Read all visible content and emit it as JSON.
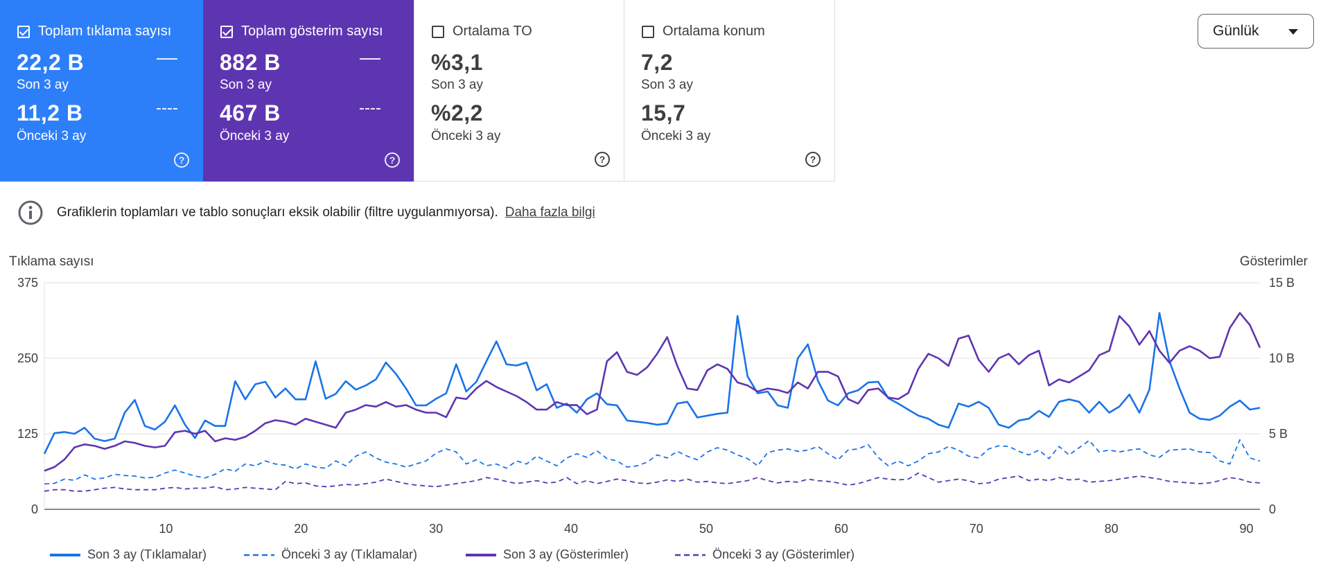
{
  "cards": [
    {
      "label": "Toplam tıklama sayısı",
      "checked": true,
      "value1": "22,2 B",
      "sub1": "Son 3 ay",
      "value2": "11,2 B",
      "sub2": "Önceki 3 ay"
    },
    {
      "label": "Toplam gösterim sayısı",
      "checked": true,
      "value1": "882 B",
      "sub1": "Son 3 ay",
      "value2": "467 B",
      "sub2": "Önceki 3 ay"
    },
    {
      "label": "Ortalama TO",
      "checked": false,
      "value1": "%3,1",
      "sub1": "Son 3 ay",
      "value2": "%2,2",
      "sub2": "Önceki 3 ay"
    },
    {
      "label": "Ortalama konum",
      "checked": false,
      "value1": "7,2",
      "sub1": "Son 3 ay",
      "value2": "15,7",
      "sub2": "Önceki 3 ay"
    }
  ],
  "granularity": {
    "selected": "Günlük"
  },
  "notice": {
    "text": "Grafiklerin toplamları ve tablo sonuçları eksik olabilir (filtre uygulanmıyorsa).",
    "link": "Daha fazla bilgi"
  },
  "colors": {
    "blue": "#1a73e8",
    "purple": "#5e35b1",
    "card_blue": "#2d7ff9",
    "card_purple": "#5e35b1"
  },
  "icons": {
    "info": "info-circle-icon",
    "help": "help-circle-icon",
    "dropdown": "caret-down-icon"
  },
  "chart_data": {
    "type": "line",
    "ylabel_left": "Tıklama sayısı",
    "ylabel_right": "Gösterimler",
    "ylim_left": [
      0,
      375
    ],
    "ylim_right": [
      0,
      15000
    ],
    "yticks_left": [
      "0",
      "125",
      "250",
      "375"
    ],
    "yticks_right": [
      "0",
      "5 B",
      "10 B",
      "15 B"
    ],
    "xticks": [
      10,
      20,
      30,
      40,
      50,
      60,
      70,
      80,
      90
    ],
    "grid": true,
    "legend_position": "bottom",
    "series": [
      {
        "name": "Son 3 ay (Tıklamalar)",
        "axis": "left",
        "style": "solid",
        "color": "#1a73e8",
        "values": [
          92,
          126,
          128,
          125,
          135,
          117,
          113,
          117,
          160,
          181,
          138,
          132,
          145,
          172,
          140,
          118,
          147,
          138,
          138,
          212,
          182,
          207,
          211,
          185,
          200,
          182,
          182,
          245,
          183,
          191,
          212,
          198,
          205,
          215,
          243,
          224,
          200,
          172,
          172,
          183,
          192,
          240,
          195,
          211,
          245,
          278,
          240,
          238,
          243,
          197,
          207,
          168,
          175,
          160,
          182,
          192,
          174,
          172,
          147,
          145,
          143,
          140,
          142,
          175,
          178,
          152,
          155,
          158,
          160,
          320,
          220,
          192,
          195,
          172,
          168,
          250,
          273,
          213,
          180,
          172,
          192,
          197,
          210,
          211,
          184,
          175,
          165,
          155,
          150,
          140,
          135,
          175,
          170,
          178,
          168,
          140,
          135,
          147,
          150,
          163,
          153,
          178,
          182,
          178,
          160,
          178,
          160,
          170,
          190,
          160,
          198,
          325,
          245,
          200,
          160,
          150,
          148,
          155,
          170,
          180,
          165,
          168
        ]
      },
      {
        "name": "Önceki 3 ay (Tıklamalar)",
        "axis": "left",
        "style": "dashed",
        "color": "#1a73e8",
        "values": [
          42,
          43,
          50,
          48,
          57,
          50,
          52,
          58,
          56,
          55,
          52,
          53,
          60,
          65,
          60,
          55,
          52,
          58,
          67,
          63,
          75,
          72,
          80,
          75,
          73,
          67,
          75,
          70,
          68,
          80,
          72,
          88,
          95,
          85,
          78,
          75,
          70,
          75,
          80,
          93,
          100,
          95,
          75,
          82,
          72,
          75,
          68,
          80,
          75,
          88,
          80,
          72,
          85,
          92,
          86,
          97,
          84,
          80,
          70,
          72,
          78,
          90,
          85,
          96,
          88,
          82,
          95,
          102,
          98,
          90,
          84,
          72,
          94,
          98,
          100,
          96,
          98,
          104,
          92,
          82,
          98,
          100,
          107,
          86,
          72,
          80,
          72,
          80,
          92,
          95,
          104,
          98,
          88,
          85,
          100,
          105,
          104,
          96,
          90,
          98,
          84,
          104,
          90,
          102,
          114,
          95,
          98,
          95,
          98,
          100,
          90,
          86,
          98,
          99,
          100,
          95,
          94,
          80,
          75,
          115,
          85,
          80
        ]
      },
      {
        "name": "Son 3 ay (Gösterimler)",
        "axis": "right",
        "style": "solid",
        "color": "#5e35b1",
        "values": [
          2550,
          2800,
          3300,
          4100,
          4300,
          4200,
          4000,
          4200,
          4500,
          4400,
          4200,
          4100,
          4200,
          5100,
          5200,
          5000,
          5200,
          4500,
          4700,
          4600,
          4800,
          5200,
          5700,
          5900,
          5800,
          5600,
          6000,
          5800,
          5600,
          5400,
          6400,
          6600,
          6900,
          6800,
          7100,
          6800,
          6900,
          6600,
          6400,
          6400,
          6100,
          7400,
          7300,
          8000,
          8500,
          8100,
          7800,
          7500,
          7100,
          6600,
          6600,
          7100,
          6900,
          6900,
          6300,
          6600,
          9800,
          10400,
          9100,
          8900,
          9400,
          10300,
          11400,
          9500,
          8000,
          7900,
          9200,
          9600,
          9300,
          8400,
          8200,
          7800,
          8000,
          7900,
          7700,
          8400,
          8000,
          9100,
          9100,
          8800,
          7300,
          7000,
          7900,
          8000,
          7400,
          7300,
          7700,
          9300,
          10300,
          10000,
          9500,
          11300,
          11500,
          9900,
          9100,
          10000,
          10300,
          9600,
          10200,
          10500,
          8200,
          8600,
          8400,
          8800,
          9200,
          10200,
          10500,
          12800,
          12100,
          10900,
          11800,
          10500,
          9700,
          10500,
          10800,
          10500,
          10000,
          10100,
          12000,
          13000,
          12200,
          10700
        ]
      },
      {
        "name": "Önceki 3 ay (Gösterimler)",
        "axis": "right",
        "style": "dashed",
        "color": "#5e35b1",
        "values": [
          1200,
          1300,
          1300,
          1200,
          1200,
          1300,
          1400,
          1450,
          1350,
          1300,
          1300,
          1300,
          1400,
          1450,
          1350,
          1400,
          1400,
          1500,
          1300,
          1350,
          1450,
          1400,
          1350,
          1300,
          1850,
          1700,
          1750,
          1550,
          1500,
          1550,
          1650,
          1600,
          1700,
          1800,
          2000,
          1850,
          1700,
          1600,
          1550,
          1500,
          1600,
          1700,
          1800,
          1900,
          2100,
          2000,
          1850,
          1700,
          1800,
          1900,
          1750,
          1800,
          2100,
          1700,
          1900,
          1700,
          1850,
          2000,
          1900,
          1750,
          1700,
          1800,
          1950,
          1850,
          2000,
          1800,
          1850,
          1750,
          1700,
          1800,
          1900,
          2100,
          1900,
          1750,
          1850,
          1800,
          2000,
          1900,
          1850,
          1750,
          1600,
          1700,
          1900,
          2100,
          2000,
          1950,
          2000,
          2400,
          2100,
          1800,
          1900,
          2000,
          1900,
          1700,
          1750,
          2000,
          2100,
          2200,
          1900,
          2000,
          1900,
          2100,
          1950,
          2000,
          1800,
          1850,
          1900,
          2000,
          2100,
          2200,
          2100,
          2000,
          1850,
          1800,
          1750,
          1700,
          1750,
          1900,
          2100,
          2000,
          1800,
          1750
        ]
      }
    ]
  }
}
